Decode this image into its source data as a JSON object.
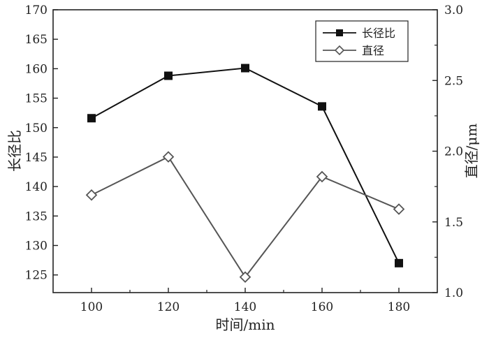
{
  "chart_data": {
    "type": "line",
    "x": [
      100,
      120,
      140,
      160,
      180
    ],
    "xlabel": "时间/min",
    "ylabel": "长径比",
    "y2label": "直径/μm",
    "xlim": [
      90,
      190
    ],
    "ylim": [
      122,
      170
    ],
    "y2lim": [
      1.0,
      3.0
    ],
    "x_ticks": [
      "100",
      "120",
      "140",
      "160",
      "180"
    ],
    "y_ticks": [
      "125",
      "130",
      "135",
      "140",
      "145",
      "150",
      "155",
      "160",
      "165",
      "170"
    ],
    "y2_ticks": [
      "1.0",
      "1.5",
      "2.0",
      "2.5",
      "3.0"
    ],
    "legend_position": "top-right",
    "series": [
      {
        "name": "长径比",
        "axis": "left",
        "marker": "filled-square",
        "color": "#111111",
        "values": [
          151.6,
          158.8,
          160.1,
          153.6,
          127.0
        ]
      },
      {
        "name": "直径",
        "axis": "right",
        "marker": "open-diamond",
        "color": "#555555",
        "values": [
          1.69,
          1.96,
          1.11,
          1.82,
          1.59
        ]
      }
    ]
  }
}
